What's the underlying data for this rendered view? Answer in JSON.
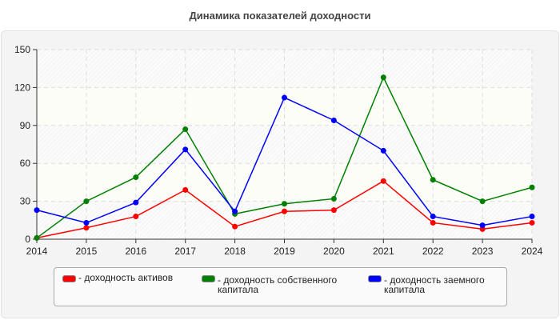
{
  "chart_data": {
    "type": "line",
    "title": "Динамика показателей доходности",
    "categories": [
      "2014",
      "2015",
      "2016",
      "2017",
      "2018",
      "2019",
      "2020",
      "2021",
      "2022",
      "2023",
      "2024"
    ],
    "ylim": [
      0,
      150
    ],
    "yticks": [
      "0",
      "30",
      "60",
      "90",
      "120",
      "150"
    ],
    "grid": true,
    "legend_position": "bottom",
    "series": [
      {
        "name": "доходность активов",
        "color": "#ff0000",
        "values": [
          1,
          9,
          18,
          39,
          10,
          22,
          23,
          46,
          13,
          8,
          13
        ]
      },
      {
        "name": "доходность собственного капитала",
        "color": "#008000",
        "values": [
          1,
          30,
          49,
          87,
          20,
          28,
          32,
          128,
          47,
          30,
          41
        ]
      },
      {
        "name": "доходность заемного капитала",
        "color": "#0000ff",
        "values": [
          23,
          13,
          29,
          71,
          22,
          112,
          94,
          70,
          18,
          11,
          18
        ]
      }
    ]
  }
}
